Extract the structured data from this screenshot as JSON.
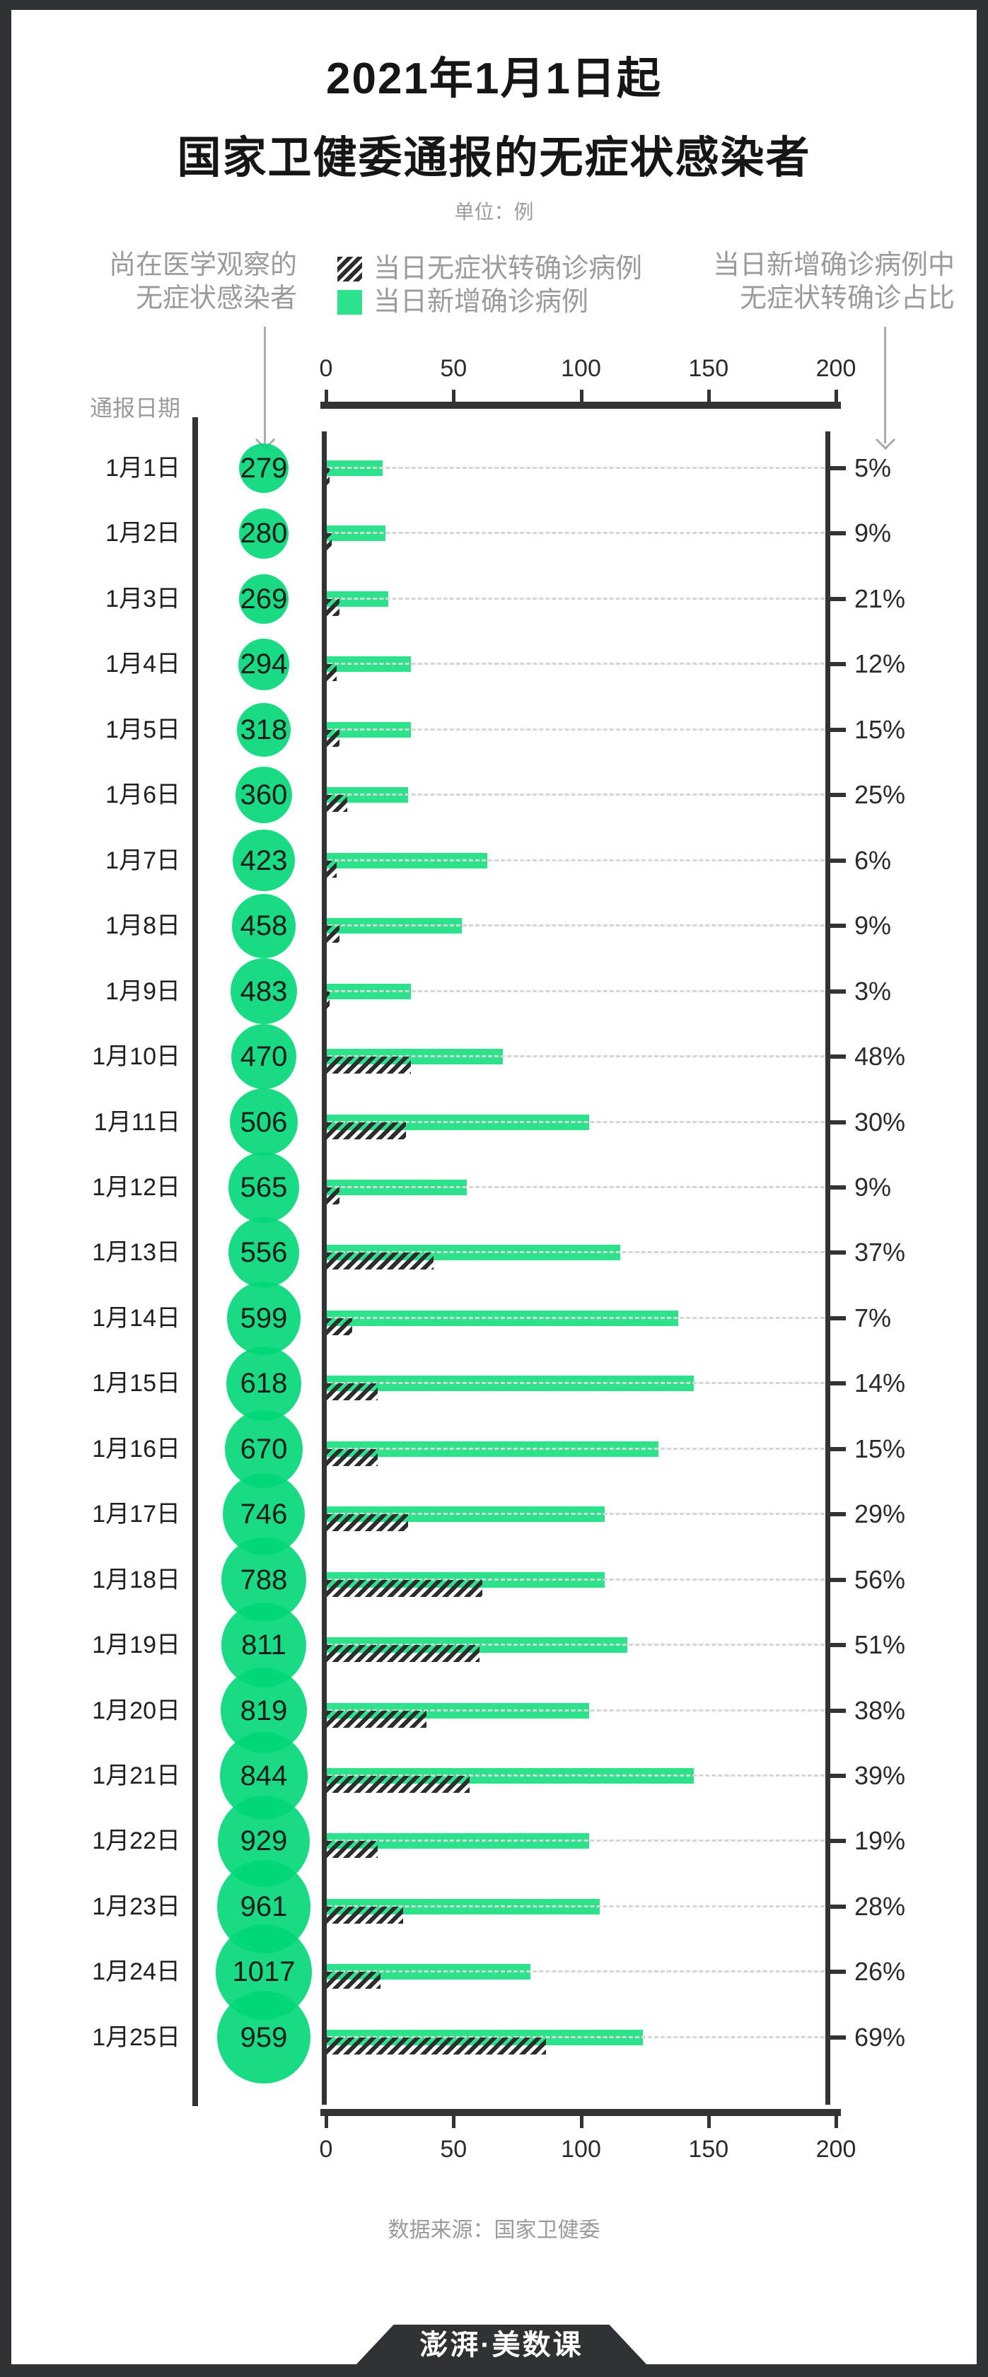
{
  "title": {
    "line1": "2021年1月1日起",
    "line2": "国家卫健委通报的无症状感染者",
    "unit": "单位：例"
  },
  "legend": {
    "left_label_line1": "尚在医学观察的",
    "left_label_line2": "无症状感染者",
    "converted_label": "当日无症状转确诊病例",
    "new_label": "当日新增确诊病例",
    "right_label_line1": "当日新增确诊病例中",
    "right_label_line2": "无症状转确诊占比"
  },
  "date_column_header": "通报日期",
  "source": "数据来源：国家卫健委",
  "logo": "澎湃·美数课",
  "colors": {
    "green": "#2ce28b",
    "circle_green": "rgba(0,215,118,0.9)",
    "hatch_dark": "#2b2d2e",
    "axis_dark": "#333333",
    "gray_text": "#9b9b9b",
    "leader_gray": "#d6d6d6",
    "frame": "#2f3134"
  },
  "chart_data": {
    "type": "bar",
    "orientation": "horizontal",
    "title": "2021年1月1日起国家卫健委通报的无症状感染者",
    "unit": "例",
    "x_ticks": [
      0,
      50,
      100,
      150,
      200
    ],
    "x_range": [
      0,
      200
    ],
    "grid": "dashed-leader-lines",
    "legend_position": "top",
    "series_legend": [
      "当日无症状转确诊病例",
      "当日新增确诊病例"
    ],
    "rows": [
      {
        "date": "1月1日",
        "under_observation": 279,
        "new_confirmed": 22,
        "converted": 1,
        "converted_share": "5%"
      },
      {
        "date": "1月2日",
        "under_observation": 280,
        "new_confirmed": 23,
        "converted": 2,
        "converted_share": "9%"
      },
      {
        "date": "1月3日",
        "under_observation": 269,
        "new_confirmed": 24,
        "converted": 5,
        "converted_share": "21%"
      },
      {
        "date": "1月4日",
        "under_observation": 294,
        "new_confirmed": 33,
        "converted": 4,
        "converted_share": "12%"
      },
      {
        "date": "1月5日",
        "under_observation": 318,
        "new_confirmed": 33,
        "converted": 5,
        "converted_share": "15%"
      },
      {
        "date": "1月6日",
        "under_observation": 360,
        "new_confirmed": 32,
        "converted": 8,
        "converted_share": "25%"
      },
      {
        "date": "1月7日",
        "under_observation": 423,
        "new_confirmed": 63,
        "converted": 4,
        "converted_share": "6%"
      },
      {
        "date": "1月8日",
        "under_observation": 458,
        "new_confirmed": 53,
        "converted": 5,
        "converted_share": "9%"
      },
      {
        "date": "1月9日",
        "under_observation": 483,
        "new_confirmed": 33,
        "converted": 1,
        "converted_share": "3%"
      },
      {
        "date": "1月10日",
        "under_observation": 470,
        "new_confirmed": 69,
        "converted": 33,
        "converted_share": "48%"
      },
      {
        "date": "1月11日",
        "under_observation": 506,
        "new_confirmed": 103,
        "converted": 31,
        "converted_share": "30%"
      },
      {
        "date": "1月12日",
        "under_observation": 565,
        "new_confirmed": 55,
        "converted": 5,
        "converted_share": "9%"
      },
      {
        "date": "1月13日",
        "under_observation": 556,
        "new_confirmed": 115,
        "converted": 42,
        "converted_share": "37%"
      },
      {
        "date": "1月14日",
        "under_observation": 599,
        "new_confirmed": 138,
        "converted": 10,
        "converted_share": "7%"
      },
      {
        "date": "1月15日",
        "under_observation": 618,
        "new_confirmed": 144,
        "converted": 20,
        "converted_share": "14%"
      },
      {
        "date": "1月16日",
        "under_observation": 670,
        "new_confirmed": 130,
        "converted": 20,
        "converted_share": "15%"
      },
      {
        "date": "1月17日",
        "under_observation": 746,
        "new_confirmed": 109,
        "converted": 32,
        "converted_share": "29%"
      },
      {
        "date": "1月18日",
        "under_observation": 788,
        "new_confirmed": 109,
        "converted": 61,
        "converted_share": "56%"
      },
      {
        "date": "1月19日",
        "under_observation": 811,
        "new_confirmed": 118,
        "converted": 60,
        "converted_share": "51%"
      },
      {
        "date": "1月20日",
        "under_observation": 819,
        "new_confirmed": 103,
        "converted": 39,
        "converted_share": "38%"
      },
      {
        "date": "1月21日",
        "under_observation": 844,
        "new_confirmed": 144,
        "converted": 56,
        "converted_share": "39%"
      },
      {
        "date": "1月22日",
        "under_observation": 929,
        "new_confirmed": 103,
        "converted": 20,
        "converted_share": "19%"
      },
      {
        "date": "1月23日",
        "under_observation": 961,
        "new_confirmed": 107,
        "converted": 30,
        "converted_share": "28%"
      },
      {
        "date": "1月24日",
        "under_observation": 1017,
        "new_confirmed": 80,
        "converted": 21,
        "converted_share": "26%"
      },
      {
        "date": "1月25日",
        "under_observation": 959,
        "new_confirmed": 124,
        "converted": 86,
        "converted_share": "69%"
      }
    ]
  }
}
